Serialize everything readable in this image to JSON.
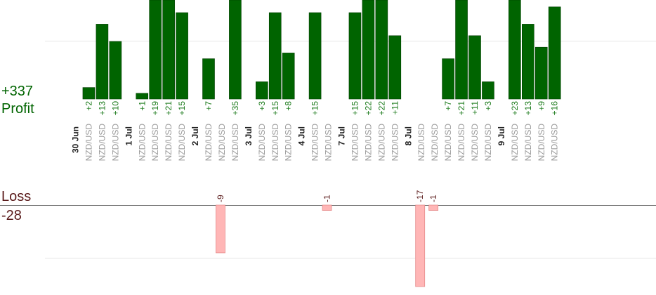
{
  "summary": {
    "profit_total": "+337",
    "profit_label": "Profit",
    "loss_label": "Loss",
    "loss_total": "-28"
  },
  "colors": {
    "profit": "#006400",
    "profit_text": "#1a7a1a",
    "loss_fill": "#ffb6b6",
    "loss_stroke": "#e58a8a",
    "loss_text": "#5a1a1a",
    "grid": "#e6e6e6",
    "axis": "#777777",
    "pair_text": "#9a9a9a",
    "date_text": "#222222"
  },
  "chart_data": {
    "type": "bar",
    "ylim_profit": [
      0,
      17
    ],
    "ylim_loss": [
      -16,
      0
    ],
    "days": [
      {
        "label": "30 Jun",
        "trades": [
          {
            "pair": "NZD/USD",
            "value": 2
          },
          {
            "pair": "NZD/USD",
            "value": 13
          },
          {
            "pair": "NZD/USD",
            "value": 10
          }
        ]
      },
      {
        "label": "1 Jul",
        "trades": [
          {
            "pair": "NZD/USD",
            "value": 1
          },
          {
            "pair": "NZD/USD",
            "value": 19
          },
          {
            "pair": "NZD/USD",
            "value": 21
          },
          {
            "pair": "NZD/USD",
            "value": 15
          }
        ]
      },
      {
        "label": "2 Jul",
        "trades": [
          {
            "pair": "NZD/USD",
            "value": 7
          },
          {
            "pair": "NZD/USD",
            "value": -9
          },
          {
            "pair": "NZD/USD",
            "value": 35
          }
        ]
      },
      {
        "label": "3 Jul",
        "trades": [
          {
            "pair": "NZD/USD",
            "value": 3
          },
          {
            "pair": "NZD/USD",
            "value": 15
          },
          {
            "pair": "NZD/USD",
            "value": 8
          }
        ]
      },
      {
        "label": "4 Jul",
        "trades": [
          {
            "pair": "NZD/USD",
            "value": 15
          },
          {
            "pair": "NZD/USD",
            "value": -1
          }
        ]
      },
      {
        "label": "7 Jul",
        "trades": [
          {
            "pair": "NZD/USD",
            "value": 15
          },
          {
            "pair": "NZD/USD",
            "value": 22
          },
          {
            "pair": "NZD/USD",
            "value": 22
          },
          {
            "pair": "NZD/USD",
            "value": 11
          }
        ]
      },
      {
        "label": "8 Jul",
        "trades": [
          {
            "pair": "NZD/USD",
            "value": -17
          },
          {
            "pair": "NZD/USD",
            "value": -1
          },
          {
            "pair": "NZD/USD",
            "value": 7
          },
          {
            "pair": "NZD/USD",
            "value": 21
          },
          {
            "pair": "NZD/USD",
            "value": 11
          },
          {
            "pair": "NZD/USD",
            "value": 3
          }
        ]
      },
      {
        "label": "9 Jul",
        "trades": [
          {
            "pair": "NZD/USD",
            "value": 23
          },
          {
            "pair": "NZD/USD",
            "value": 13
          },
          {
            "pair": "NZD/USD",
            "value": 9
          },
          {
            "pair": "NZD/USD",
            "value": 16
          }
        ]
      }
    ]
  }
}
